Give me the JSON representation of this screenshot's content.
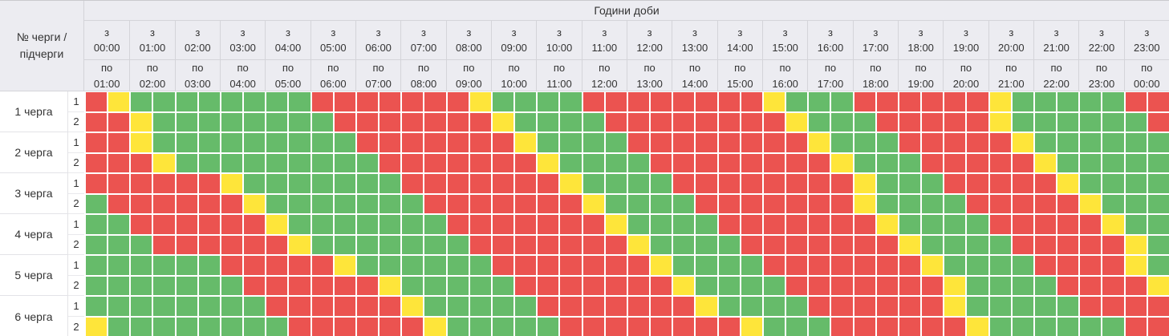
{
  "schedule": {
    "corner_label": "№ черги / підчерги",
    "hours_title": "Години доби",
    "from_prefix": "з",
    "to_prefix": "по",
    "hours_from": [
      "00:00",
      "01:00",
      "02:00",
      "03:00",
      "04:00",
      "05:00",
      "06:00",
      "07:00",
      "08:00",
      "09:00",
      "10:00",
      "11:00",
      "12:00",
      "13:00",
      "14:00",
      "15:00",
      "16:00",
      "17:00",
      "18:00",
      "19:00",
      "20:00",
      "21:00",
      "22:00",
      "23:00"
    ],
    "hours_to": [
      "01:00",
      "02:00",
      "03:00",
      "04:00",
      "05:00",
      "06:00",
      "07:00",
      "08:00",
      "09:00",
      "10:00",
      "11:00",
      "12:00",
      "13:00",
      "14:00",
      "15:00",
      "16:00",
      "17:00",
      "18:00",
      "19:00",
      "20:00",
      "21:00",
      "22:00",
      "23:00",
      "00:00"
    ],
    "slot_minutes": 30,
    "status_colors": {
      "G": "#66BB6A",
      "R": "#EB5350",
      "Y": "#FEE53A"
    },
    "status_names": {
      "G": "green",
      "R": "red",
      "Y": "yellow"
    },
    "queues": [
      {
        "label": "1 черга",
        "subqueues": [
          {
            "label": "1",
            "slots": "RYGGGGGGGGRRRRRRRYGGGGRRRRRRRRYGGGRRRRRRYGGGGGRR"
          },
          {
            "label": "2",
            "slots": "RRYGGGGGGGGRRRRRRRYGGGGRRRRRRRRYGGGRRRRRYGGGGGGR"
          }
        ]
      },
      {
        "label": "2 черга",
        "subqueues": [
          {
            "label": "1",
            "slots": "RRYGGGGGGGGGRRRRRRRYGGGGRRRRRRRRYGGGRRRRRYGGGGGG"
          },
          {
            "label": "2",
            "slots": "RRRYGGGGGGGGGRRRRRRRYGGGGRRRRRRRRYGGGRRRRRYGGGGG"
          }
        ]
      },
      {
        "label": "3 черга",
        "subqueues": [
          {
            "label": "1",
            "slots": "RRRRRRYGGGGGGGRRRRRRRYGGGGRRRRRRRRYGGGRRRRRYGGGG"
          },
          {
            "label": "2",
            "slots": "GRRRRRRYGGGGGGGRRRRRRRYGGGGRRRRRRRYGGGGRRRRRYGGG"
          }
        ]
      },
      {
        "label": "4 черга",
        "subqueues": [
          {
            "label": "1",
            "slots": "GGRRRRRRYGGGGGGGRRRRRRRYGGGGRRRRRRRYGGGGRRRRRYGG"
          },
          {
            "label": "2",
            "slots": "GGGRRRRRRYGGGGGGGRRRRRRRYGGGGRRRRRRRYGGGGRRRRRYG"
          }
        ]
      },
      {
        "label": "5 черга",
        "subqueues": [
          {
            "label": "1",
            "slots": "GGGGGGRRRRRYGGGGGGRRRRRRRYGGGGRRRRRRRYGGGGRRRRYG"
          },
          {
            "label": "2",
            "slots": "GGGGGGGRRRRRRYGGGGGRRRRRRRYGGGGRRRRRRRYGGGGRRRRY"
          }
        ]
      },
      {
        "label": "6 черга",
        "subqueues": [
          {
            "label": "1",
            "slots": "GGGGGGGGRRRRRRYGGGGGRRRRRRRYGGGGRRRRRRYGGGGGRRRR"
          },
          {
            "label": "2",
            "slots": "YGGGGGGGGRRRRRRYGGGGGRRRRRRRRYGGGRRRRRRYGGGGGGRR"
          }
        ]
      }
    ]
  }
}
